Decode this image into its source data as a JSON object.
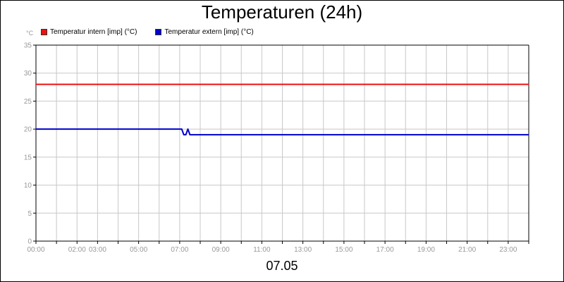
{
  "chart_data": {
    "type": "line",
    "title": "Temperaturen (24h)",
    "ylabel": "°C",
    "xlabel": "07.05",
    "x_unit": "hours",
    "xlim": [
      0,
      24
    ],
    "ylim": [
      0,
      35
    ],
    "y_ticks": [
      0,
      5,
      10,
      15,
      20,
      25,
      30,
      35
    ],
    "x_grid_hours": [
      0,
      1,
      2,
      3,
      4,
      5,
      6,
      7,
      8,
      9,
      10,
      11,
      12,
      13,
      14,
      15,
      16,
      17,
      18,
      19,
      20,
      21,
      22,
      23,
      24
    ],
    "x_tick_labels": [
      {
        "x": 0,
        "label": "00:00"
      },
      {
        "x": 2,
        "label": "02:00"
      },
      {
        "x": 3,
        "label": "03:00"
      },
      {
        "x": 5,
        "label": "05:00"
      },
      {
        "x": 7,
        "label": "07:00"
      },
      {
        "x": 9,
        "label": "09:00"
      },
      {
        "x": 11,
        "label": "11:00"
      },
      {
        "x": 13,
        "label": "13:00"
      },
      {
        "x": 15,
        "label": "15:00"
      },
      {
        "x": 17,
        "label": "17:00"
      },
      {
        "x": 19,
        "label": "19:00"
      },
      {
        "x": 21,
        "label": "21:00"
      },
      {
        "x": 23,
        "label": "23:00"
      }
    ],
    "grid": true,
    "legend_position": "top-left",
    "series": [
      {
        "name": "Temperatur intern [imp] (°C)",
        "color": "#ee1111",
        "points": [
          [
            0,
            28
          ],
          [
            24,
            28
          ]
        ]
      },
      {
        "name": "Temperatur extern [imp] (°C)",
        "color": "#0000cc",
        "points": [
          [
            0,
            20
          ],
          [
            7.1,
            20
          ],
          [
            7.2,
            19
          ],
          [
            7.3,
            19
          ],
          [
            7.4,
            20
          ],
          [
            7.5,
            19
          ],
          [
            24,
            19
          ]
        ]
      }
    ]
  }
}
